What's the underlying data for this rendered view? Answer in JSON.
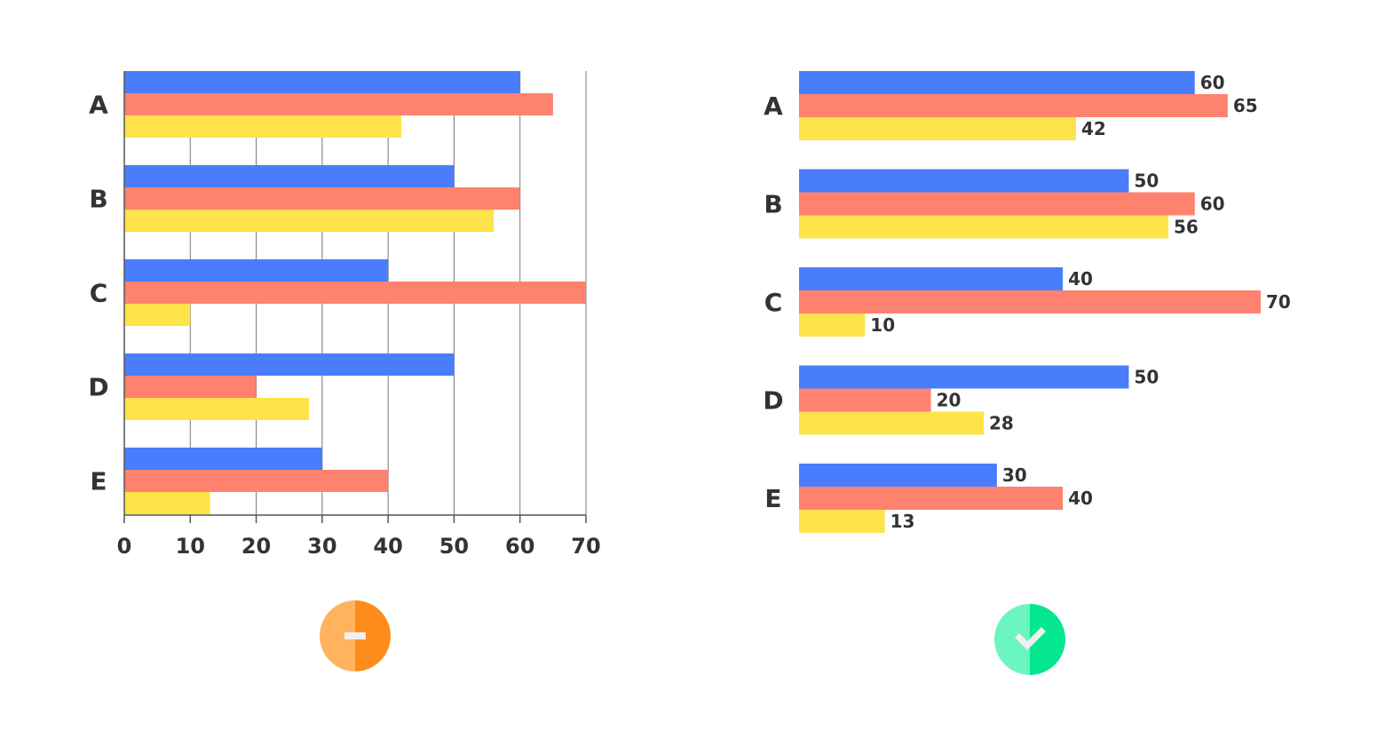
{
  "colors": {
    "series": [
      "#4a7dfc",
      "#fe826e",
      "#fee34a"
    ],
    "minus_badge": [
      "#ffb35f",
      "#fe8c1c"
    ],
    "check_badge": [
      "#6af6be",
      "#05e78f"
    ],
    "badge_mark": "#f0f0f0"
  },
  "chart_data": [
    {
      "type": "bar",
      "orientation": "horizontal",
      "categories": [
        "A",
        "B",
        "C",
        "D",
        "E"
      ],
      "series": [
        {
          "values": [
            60,
            50,
            40,
            50,
            30
          ]
        },
        {
          "values": [
            65,
            60,
            70,
            20,
            40
          ]
        },
        {
          "values": [
            42,
            56,
            10,
            28,
            13
          ]
        }
      ],
      "xlim": [
        0,
        70
      ],
      "xticks": [
        "0",
        "10",
        "20",
        "30",
        "40",
        "50",
        "60",
        "70"
      ],
      "grid": true,
      "data_labels": false,
      "badge": "minus-icon"
    },
    {
      "type": "bar",
      "orientation": "horizontal",
      "categories": [
        "A",
        "B",
        "C",
        "D",
        "E"
      ],
      "series": [
        {
          "values": [
            60,
            50,
            40,
            50,
            30
          ]
        },
        {
          "values": [
            65,
            60,
            70,
            20,
            40
          ]
        },
        {
          "values": [
            42,
            56,
            10,
            28,
            13
          ]
        }
      ],
      "xlim": [
        0,
        70
      ],
      "grid": false,
      "data_labels": true,
      "badge": "check-icon"
    }
  ]
}
